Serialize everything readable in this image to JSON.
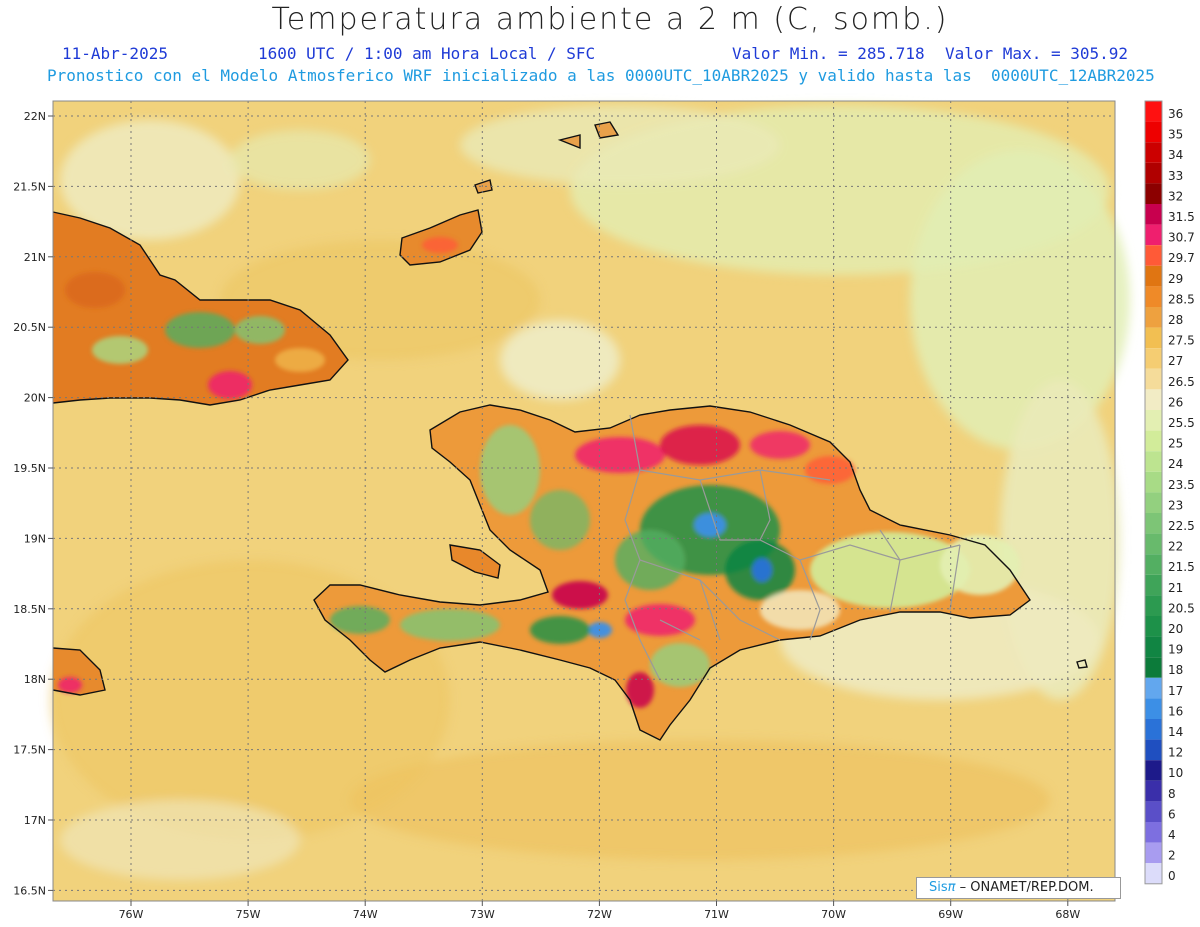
{
  "header": {
    "title": "Temperatura ambiente a 2 m (C, somb.)",
    "date": "11-Abr-2025",
    "time": "1600 UTC / 1:00 am Hora Local / SFC",
    "min_label": "Valor Min. = 285.718",
    "max_label": "Valor Max. = 305.92",
    "forecast_note": "Pronostico con el Modelo Atmosferico WRF inicializado a las 0000UTC_10ABR2025 y valido hasta las  0000UTC_12ABR2025"
  },
  "map": {
    "lon_ticks": [
      "76W",
      "75W",
      "74W",
      "73W",
      "72W",
      "71W",
      "70W",
      "69W",
      "68W"
    ],
    "lat_ticks": [
      "22N",
      "21.5N",
      "21N",
      "20.5N",
      "20N",
      "19.5N",
      "19N",
      "18.5N",
      "18N",
      "17.5N",
      "17N",
      "16.5N"
    ],
    "background_color": "#f1d27c"
  },
  "legend": {
    "labels": [
      "36",
      "35",
      "34",
      "33",
      "32",
      "31.5",
      "30.7",
      "29.7",
      "29",
      "28.5",
      "28",
      "27.5",
      "27",
      "26.5",
      "26",
      "25.5",
      "25",
      "24",
      "23.5",
      "23",
      "22.5",
      "22",
      "21.5",
      "21",
      "20.5",
      "20",
      "19",
      "18",
      "17",
      "16",
      "14",
      "12",
      "10",
      "8",
      "6",
      "4",
      "2",
      "0"
    ],
    "colors": [
      "#ff1111",
      "#ee0000",
      "#cc0000",
      "#b00000",
      "#8c0000",
      "#c8004e",
      "#ef1f6e",
      "#ff5a37",
      "#e07512",
      "#ef8a28",
      "#eea13f",
      "#f2bf52",
      "#f5cd72",
      "#f5dc9a",
      "#f2ecc5",
      "#e3efb2",
      "#d2ec9a",
      "#bde490",
      "#a8db86",
      "#93d07f",
      "#7dc576",
      "#68ba6c",
      "#53af62",
      "#3fa459",
      "#2c9a50",
      "#1d9149",
      "#118543",
      "#0c7b3a",
      "#62a7ee",
      "#3c8fe6",
      "#2a72d8",
      "#1f4fc0",
      "#1d1a8a",
      "#3a2faa",
      "#5a4fc8",
      "#7d6fe0",
      "#a89cf0",
      "#dcdcfa"
    ]
  },
  "credit": {
    "brand": "Sis",
    "symbol": "π",
    "text": "– ONAMET/REP.DOM."
  }
}
